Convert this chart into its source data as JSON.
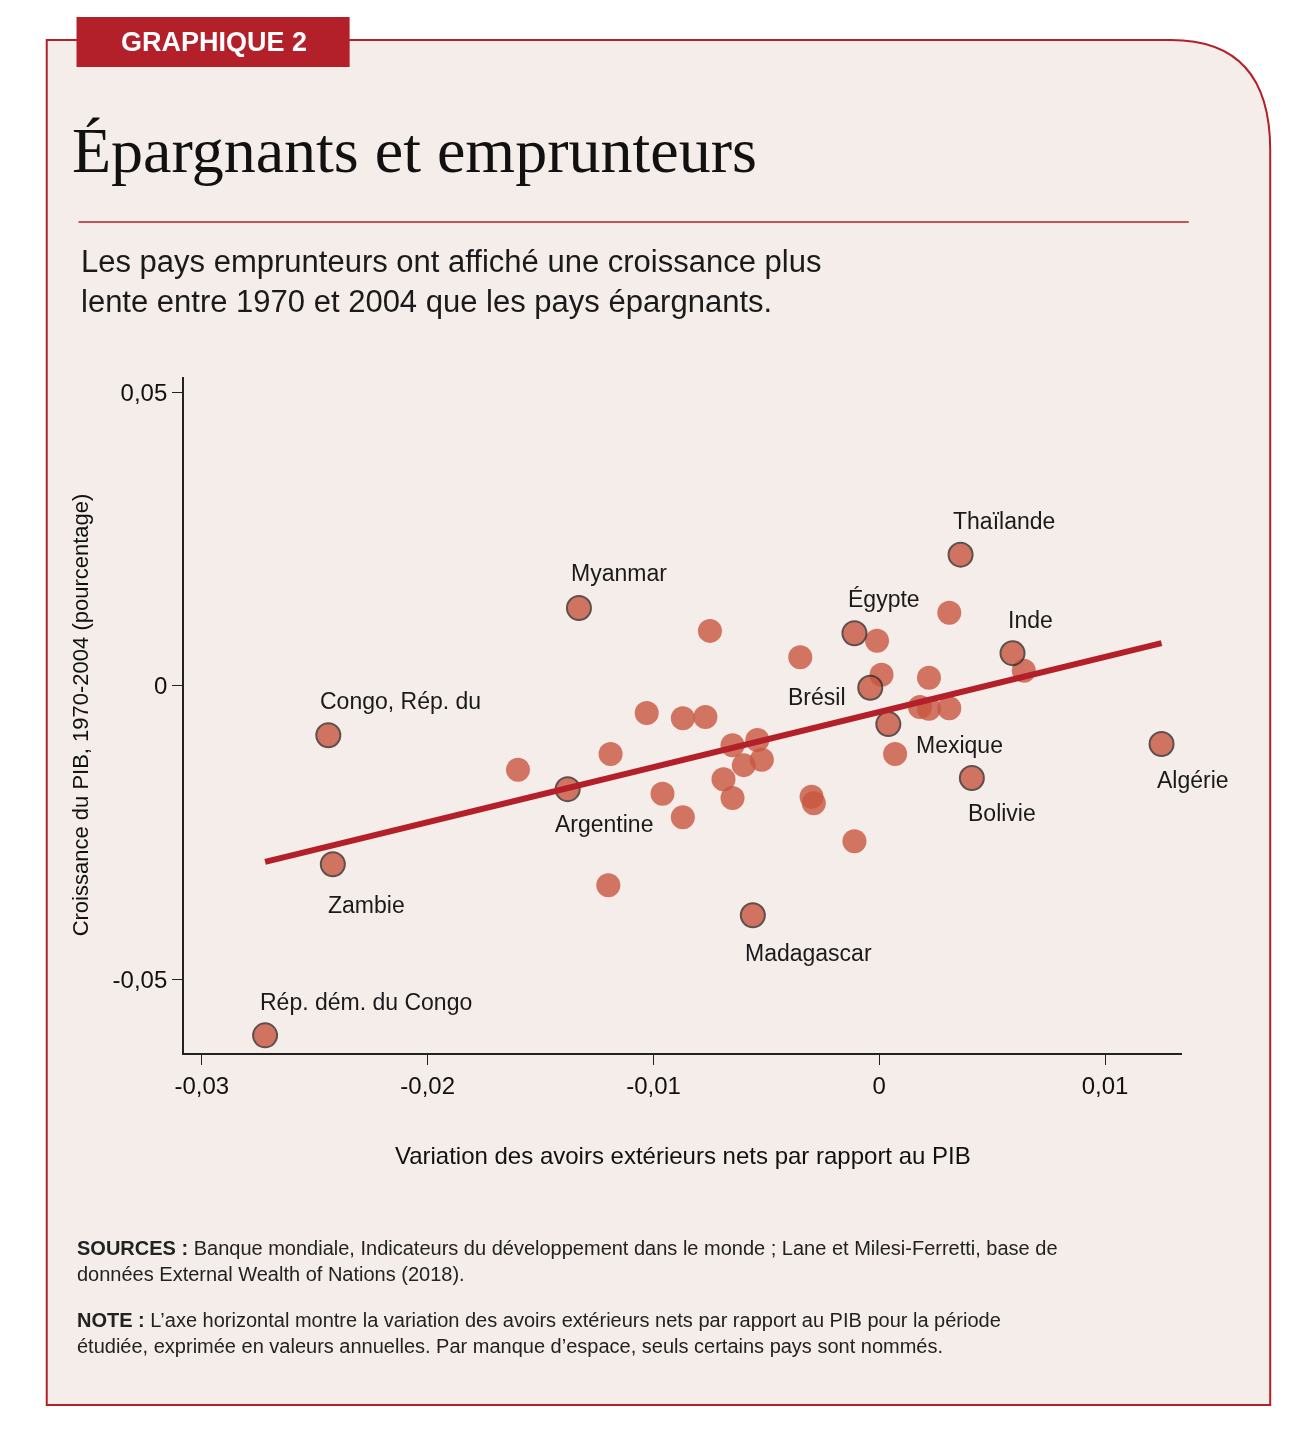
{
  "chart_data": {
    "type": "scatter",
    "title": "Épargnants et emprunteurs",
    "subtitle": "Les pays emprunteurs ont affiché une croissance plus lente entre 1970 et 2004 que les pays épargnants.",
    "xlabel": "Variation des avoirs extérieurs nets par rapport au PIB",
    "ylabel": "Croissance du PIB, 1970-2004 (pourcentage)",
    "xlim": [
      -0.0308,
      0.0134
    ],
    "ylim": [
      -0.0626,
      0.0527
    ],
    "xticks": [
      {
        "value": -0.03,
        "label": "-0,03"
      },
      {
        "value": -0.02,
        "label": "-0,02"
      },
      {
        "value": -0.01,
        "label": "-0,01"
      },
      0,
      {
        "value": 0.01,
        "label": "0,01"
      }
    ],
    "yticks": [
      {
        "value": -0.05,
        "label": "-0,05"
      },
      0,
      {
        "value": 0.05,
        "label": "0,05"
      }
    ],
    "marker": "circle",
    "series": [
      {
        "color": "#c8553f",
        "x": [
          -0.016,
          -0.0119,
          -0.0103,
          -0.0087,
          -0.0077,
          -0.0075,
          -0.012,
          -0.0096,
          -0.0087,
          -0.0069,
          -0.0065,
          -0.0065,
          -0.006,
          -0.0054,
          -0.0052,
          -0.0035,
          -0.003,
          -0.0029,
          -0.0011,
          -0.0001,
          0.0001,
          0.0031,
          0.0022,
          0.0018,
          0.0022,
          0.0031,
          0.0007,
          0.0064
        ],
        "values": [
          -0.0143,
          -0.0116,
          -0.0046,
          -0.0055,
          -0.0053,
          0.0094,
          -0.034,
          -0.0184,
          -0.0224,
          -0.0159,
          -0.0191,
          -0.0101,
          -0.0135,
          -0.0092,
          -0.0126,
          0.0049,
          -0.0189,
          -0.02,
          -0.0265,
          0.0077,
          0.0019,
          0.0125,
          0.0014,
          -0.0036,
          -0.0039,
          -0.0038,
          -0.0116,
          0.0026
        ]
      },
      {
        "color": "#c8553f",
        "x": [
          -0.0133,
          -0.0244,
          -0.0242,
          -0.0272,
          -0.0138,
          -0.0056,
          0.0036,
          -0.0011,
          -0.0004,
          0.0004,
          0.0059,
          0.0041,
          0.0125
        ],
        "values": [
          0.0133,
          -0.0084,
          -0.0304,
          -0.0596,
          -0.0176,
          -0.0391,
          0.0224,
          0.009,
          -0.0003,
          -0.0065,
          0.0056,
          -0.0157,
          -0.0099
        ]
      },
      {
        "type": "line",
        "marker": "none",
        "color": "#b3202a",
        "x": [
          -0.0272,
          0.0125
        ],
        "values": [
          -0.03,
          0.0073
        ]
      }
    ],
    "annotations": [
      "GRAPHIQUE 2",
      {
        "text": "Myanmar",
        "x": -0.0133,
        "y": 0.0133
      },
      {
        "text": "Congo, Rép. du",
        "x": -0.0244,
        "y": -0.0084
      },
      {
        "text": "Zambie",
        "x": -0.0242,
        "y": -0.0304
      },
      {
        "text": "Rép. dém. du Congo",
        "x": -0.0272,
        "y": -0.0596
      },
      {
        "text": "Argentine",
        "x": -0.0138,
        "y": -0.0176
      },
      {
        "text": "Madagascar",
        "x": -0.0056,
        "y": -0.0391
      },
      {
        "text": "Thaïlande",
        "x": 0.0036,
        "y": 0.0224
      },
      {
        "text": "Égypte",
        "x": -0.0011,
        "y": 0.009
      },
      {
        "text": "Brésil",
        "x": -0.0004,
        "y": -0.0003
      },
      {
        "text": "Mexique",
        "x": 0.0004,
        "y": -0.0065
      },
      {
        "text": "Inde",
        "x": 0.0059,
        "y": 0.0056
      },
      {
        "text": "Bolivie",
        "x": 0.0041,
        "y": -0.0157
      },
      {
        "text": "Algérie",
        "x": 0.0125,
        "y": -0.0099
      },
      "SOURCES : Banque mondiale, Indicateurs du développement dans le monde ; Lane et Milesi-Ferretti, base de données External Wealth of Nations (2018).",
      "NOTE : L’axe horizontal montre la variation des avoirs extérieurs nets par rapport au PIB pour la période étudiée, exprimée en valeurs annuelles. Par manque d’espace, seuls certains pays sont nommés."
    ]
  }
}
